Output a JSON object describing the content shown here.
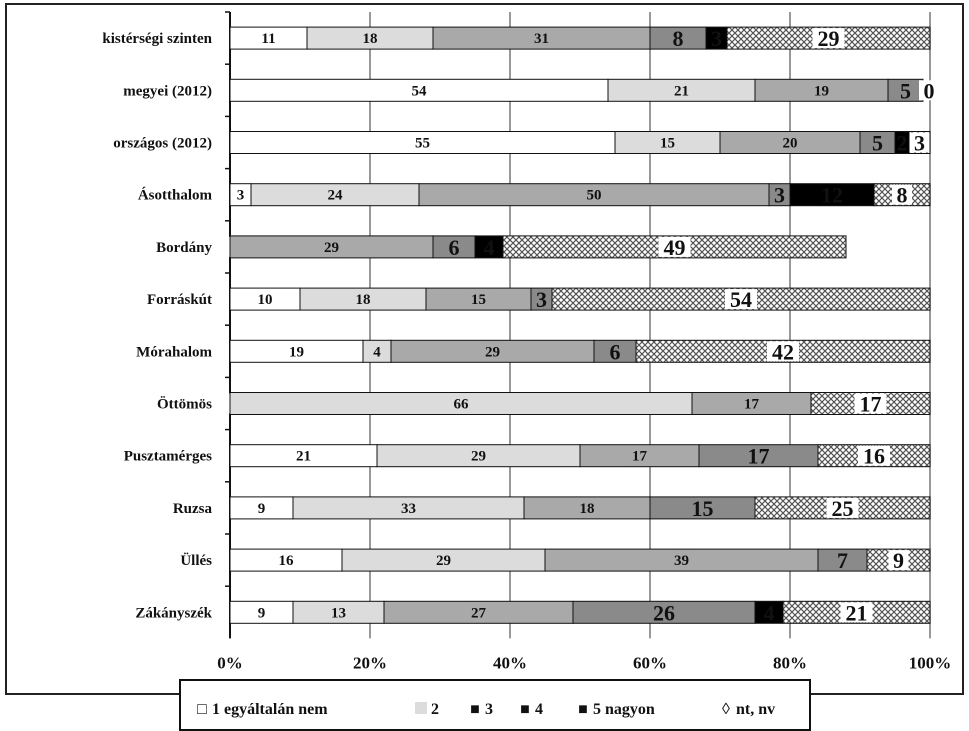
{
  "chart_data": {
    "type": "bar",
    "orientation": "horizontal",
    "stacked": "percent",
    "title": "",
    "xlabel": "",
    "ylabel": "",
    "xlim": [
      0,
      100
    ],
    "x_ticks": [
      "0%",
      "20%",
      "40%",
      "60%",
      "80%",
      "100%"
    ],
    "grid": "vertical",
    "legend_position": "bottom",
    "categories": [
      "kistérségi szinten",
      "megyei (2012)",
      "országos (2012)",
      "Ásotthalom",
      "Bordány",
      "Forráskút",
      "Mórahalom",
      "Öttömös",
      "Pusztamérges",
      "Ruzsa",
      "Üllés",
      "Zákányszék"
    ],
    "series": [
      {
        "name": "1 egyáltalán nem",
        "color": "#ffffff",
        "pattern": "none",
        "values": [
          11,
          54,
          55,
          3,
          0,
          10,
          19,
          0,
          21,
          9,
          16,
          9
        ]
      },
      {
        "name": "2",
        "color": "#dcdcdc",
        "pattern": "none",
        "values": [
          18,
          21,
          15,
          24,
          0,
          18,
          4,
          66,
          29,
          33,
          29,
          13
        ]
      },
      {
        "name": "3",
        "color": "#a9a9a9",
        "pattern": "none",
        "values": [
          31,
          19,
          20,
          50,
          29,
          15,
          29,
          17,
          17,
          18,
          39,
          27
        ]
      },
      {
        "name": "4",
        "color": "#8a8a8a",
        "pattern": "none",
        "values": [
          8,
          5,
          5,
          3,
          6,
          3,
          6,
          0,
          17,
          15,
          7,
          26
        ]
      },
      {
        "name": "5 nagyon",
        "color": "#000000",
        "pattern": "none",
        "values": [
          3,
          0,
          2,
          12,
          4,
          0,
          0,
          0,
          0,
          0,
          0,
          4
        ]
      },
      {
        "name": "nt, nv",
        "color": "#ffffff",
        "pattern": "crosshatch",
        "values": [
          29,
          0,
          3,
          8,
          49,
          54,
          42,
          17,
          16,
          25,
          9,
          21
        ]
      }
    ],
    "data_labels": [
      [
        "11",
        "18",
        "31",
        "8",
        "3",
        "29"
      ],
      [
        "54",
        "21",
        "19",
        "5",
        "",
        "0"
      ],
      [
        "55",
        "15",
        "20",
        "5",
        "2",
        "3"
      ],
      [
        "3",
        "24",
        "50",
        "3",
        "12",
        "8"
      ],
      [
        "0",
        "",
        "29",
        "6",
        "4",
        "49"
      ],
      [
        "10",
        "18",
        "15",
        "3",
        "",
        "54"
      ],
      [
        "19",
        "4",
        "29",
        "6",
        "",
        "42"
      ],
      [
        "0",
        "66",
        "17",
        "",
        "",
        "17"
      ],
      [
        "21",
        "29",
        "17",
        "17",
        "",
        "16"
      ],
      [
        "9",
        "33",
        "18",
        "15",
        "",
        "25"
      ],
      [
        "16",
        "29",
        "39",
        "7",
        "",
        "9"
      ],
      [
        "9",
        "13",
        "27",
        "26",
        "4",
        "21"
      ]
    ],
    "legend_markers": [
      "□",
      "",
      "■",
      "■",
      "■",
      "◊"
    ]
  }
}
